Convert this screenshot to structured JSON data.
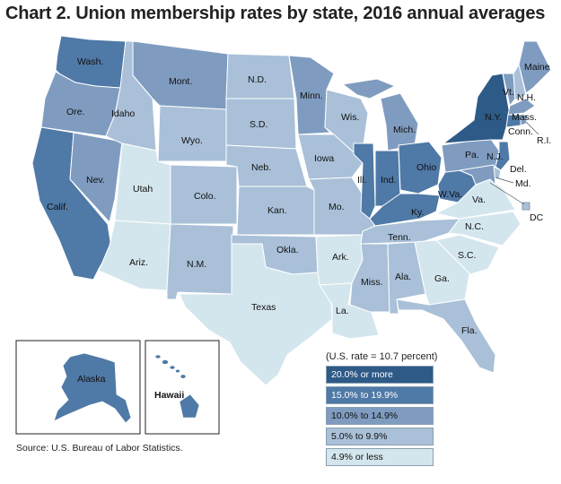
{
  "title": "Chart 2. Union membership rates by state, 2016 annual averages",
  "source": "Source: U.S. Bureau of Labor Statistics.",
  "legend": {
    "note": "(U.S. rate = 10.7 percent)",
    "items": [
      {
        "label": "20.0% or more",
        "color": "#2e5a87"
      },
      {
        "label": "15.0% to 19.9%",
        "color": "#4f79a6"
      },
      {
        "label": "10.0% to 14.9%",
        "color": "#7f9cc0"
      },
      {
        "label": "5.0% to 9.9%",
        "color": "#a9c0d8"
      },
      {
        "label": "4.9% or less",
        "color": "#d4e6ed"
      }
    ]
  },
  "states": {
    "wa": "Wash.",
    "or": "Ore.",
    "ca": "Calif.",
    "nv": "Nev.",
    "id": "Idaho",
    "mt": "Mont.",
    "wy": "Wyo.",
    "ut": "Utah",
    "az": "Ariz.",
    "co": "Colo.",
    "nm": "N.M.",
    "nd": "N.D.",
    "sd": "S.D.",
    "ne": "Neb.",
    "ks": "Kan.",
    "ok": "Okla.",
    "tx": "Texas",
    "mn": "Minn.",
    "ia": "Iowa",
    "mo": "Mo.",
    "ar": "Ark.",
    "la": "La.",
    "wi": "Wis.",
    "il": "Ill.",
    "mi": "Mich.",
    "in": "Ind.",
    "oh": "Ohio",
    "ky": "Ky.",
    "tn": "Tenn.",
    "ms": "Miss.",
    "al": "Ala.",
    "ga": "Ga.",
    "fl": "Fla.",
    "sc": "S.C.",
    "nc": "N.C.",
    "va": "Va.",
    "wv": "W.Va.",
    "pa": "Pa.",
    "ny": "N.Y.",
    "vt": "Vt.",
    "nh": "N.H.",
    "me": "Maine",
    "ma": "Mass.",
    "ct": "Conn.",
    "ri": "R.I.",
    "nj": "N.J.",
    "de": "Del.",
    "md": "Md.",
    "dc": "DC",
    "ak": "Alaska",
    "hi": "Hawaii"
  }
}
